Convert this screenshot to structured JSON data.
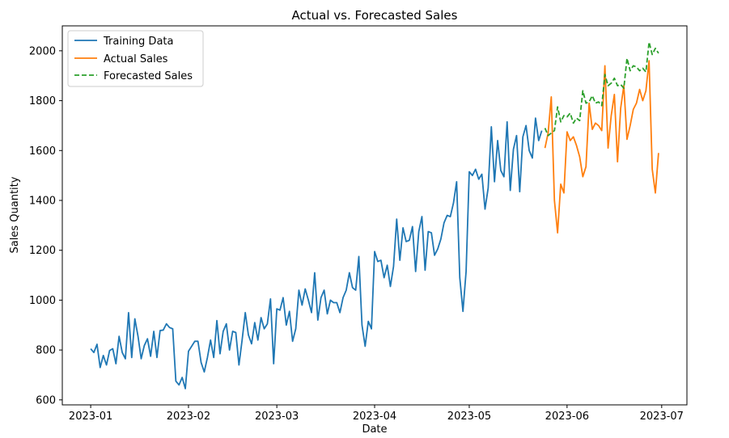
{
  "chart_data": {
    "type": "line",
    "title": "Actual vs. Forecasted Sales",
    "xlabel": "Date",
    "ylabel": "Sales Quantity",
    "x_ticks": [
      "2023-01-01",
      "2023-02-01",
      "2023-03-01",
      "2023-04-01",
      "2023-05-01",
      "2023-06-01",
      "2023-07-01"
    ],
    "x_tick_labels": [
      "2023-01",
      "2023-02",
      "2023-03",
      "2023-04",
      "2023-05",
      "2023-06",
      "2023-07"
    ],
    "xlim": [
      "2022-12-23",
      "2023-07-09"
    ],
    "y_ticks": [
      600,
      800,
      1000,
      1200,
      1400,
      1600,
      1800,
      2000
    ],
    "y_tick_labels": [
      "600",
      "800",
      "1000",
      "1200",
      "1400",
      "1600",
      "1800",
      "2000"
    ],
    "ylim": [
      580,
      2100
    ],
    "grid": false,
    "legend_placement": "top-left",
    "series": [
      {
        "name": "Training Data",
        "color": "#1f77b4",
        "style": "solid",
        "start_date": "2023-01-01",
        "values": [
          805,
          790,
          823,
          730,
          778,
          740,
          798,
          805,
          745,
          855,
          790,
          765,
          950,
          770,
          925,
          855,
          765,
          818,
          845,
          775,
          875,
          770,
          878,
          880,
          905,
          890,
          885,
          675,
          660,
          690,
          645,
          795,
          815,
          835,
          835,
          750,
          712,
          770,
          840,
          770,
          918,
          785,
          875,
          905,
          800,
          875,
          870,
          740,
          840,
          950,
          860,
          825,
          910,
          840,
          930,
          885,
          905,
          1005,
          745,
          965,
          960,
          1010,
          900,
          955,
          835,
          885,
          1040,
          980,
          1045,
          1000,
          950,
          1110,
          920,
          1010,
          1040,
          945,
          1000,
          990,
          990,
          950,
          1010,
          1040,
          1110,
          1050,
          1040,
          1175,
          900,
          815,
          915,
          885,
          1195,
          1155,
          1160,
          1090,
          1140,
          1055,
          1135,
          1325,
          1160,
          1290,
          1235,
          1240,
          1295,
          1115,
          1275,
          1335,
          1120,
          1275,
          1270,
          1180,
          1205,
          1245,
          1310,
          1340,
          1335,
          1390,
          1475,
          1090,
          955,
          1115,
          1515,
          1500,
          1525,
          1485,
          1505,
          1365,
          1450,
          1695,
          1475,
          1640,
          1520,
          1495,
          1715,
          1440,
          1605,
          1660,
          1435,
          1655,
          1700,
          1600,
          1570,
          1730,
          1640,
          1680
        ]
      },
      {
        "name": "Actual Sales",
        "color": "#ff7f0e",
        "style": "solid",
        "start_date": "2023-05-25",
        "values": [
          1610,
          1670,
          1815,
          1400,
          1270,
          1465,
          1430,
          1675,
          1640,
          1655,
          1620,
          1575,
          1495,
          1535,
          1790,
          1685,
          1710,
          1700,
          1680,
          1940,
          1610,
          1740,
          1825,
          1555,
          1770,
          1860,
          1645,
          1700,
          1765,
          1790,
          1845,
          1800,
          1840,
          1960,
          1525,
          1430,
          1590
        ]
      },
      {
        "name": "Forecasted Sales",
        "color": "#2ca02c",
        "style": "dashed",
        "start_date": "2023-05-25",
        "values": [
          1690,
          1660,
          1670,
          1680,
          1775,
          1715,
          1740,
          1735,
          1750,
          1710,
          1730,
          1720,
          1840,
          1790,
          1795,
          1820,
          1790,
          1795,
          1780,
          1905,
          1860,
          1870,
          1890,
          1860,
          1865,
          1850,
          1970,
          1920,
          1940,
          1935,
          1920,
          1930,
          1915,
          2035,
          1985,
          2010,
          1990
        ]
      }
    ]
  }
}
